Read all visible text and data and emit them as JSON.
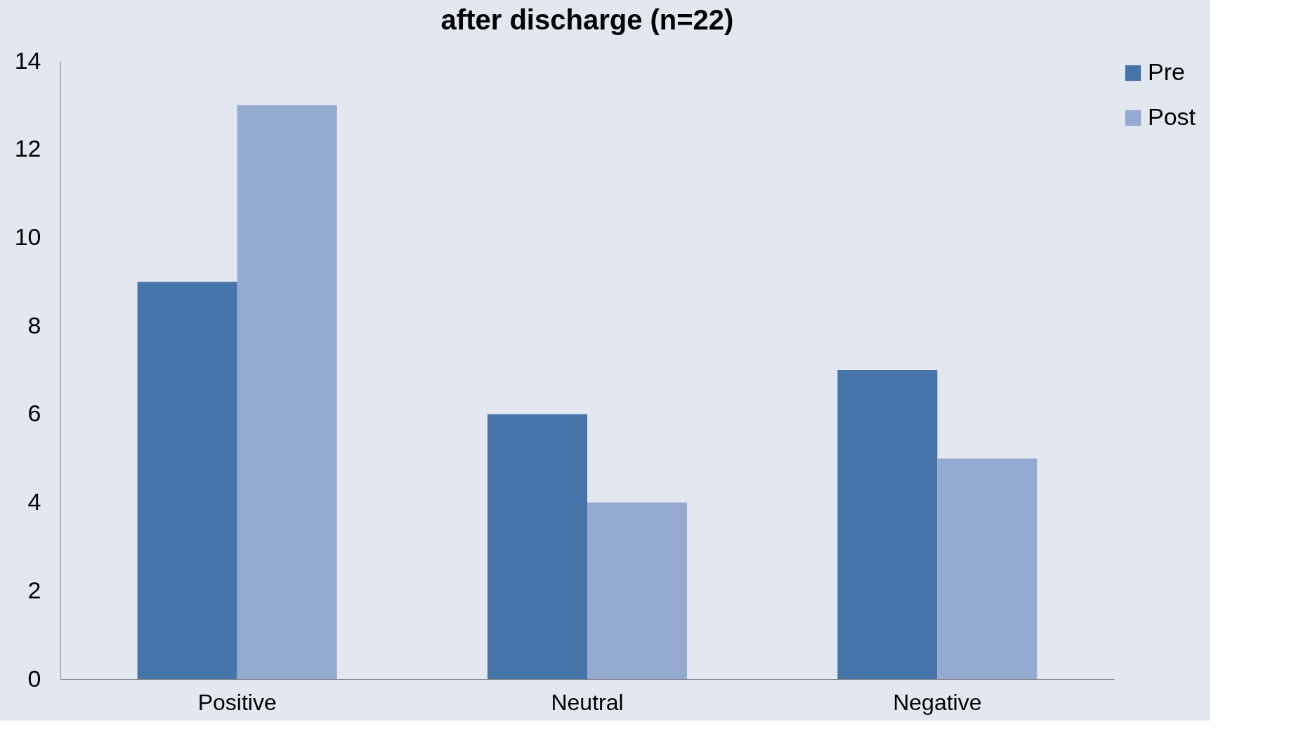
{
  "chart_data": {
    "type": "bar",
    "title": "after discharge (n=22)",
    "categories": [
      "Positive",
      "Neutral",
      "Negative"
    ],
    "series": [
      {
        "name": "Pre",
        "color": "#4674a8",
        "values": [
          9,
          6,
          7
        ]
      },
      {
        "name": "Post",
        "color": "#95aad1",
        "values": [
          13,
          4,
          5
        ]
      }
    ],
    "ylim": [
      0,
      14
    ],
    "yticks": [
      0,
      2,
      4,
      6,
      8,
      10,
      12,
      14
    ],
    "grid": false,
    "legend": "top right"
  }
}
